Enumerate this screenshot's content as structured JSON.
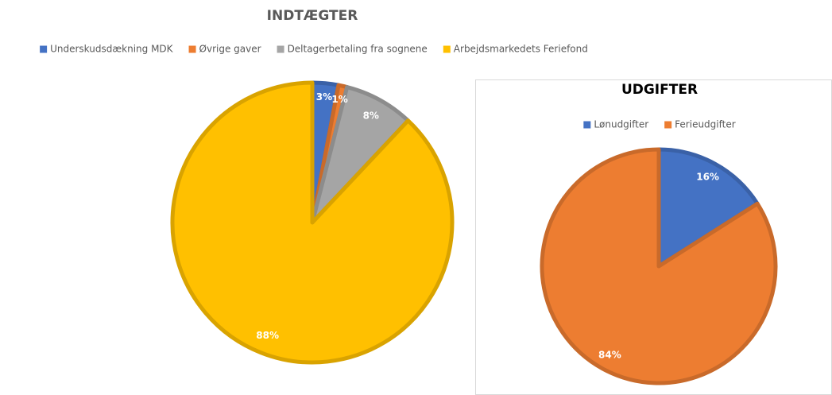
{
  "chart_data": [
    {
      "type": "pie",
      "title": "INDTÆGTER",
      "categories": [
        "Underskudsdækning MDK",
        "Øvrige gaver",
        "Deltagerbetaling fra sognene",
        "Arbejdsmarkedets Feriefond"
      ],
      "values": [
        3,
        1,
        8,
        88
      ],
      "value_labels": [
        "3%",
        "1%",
        "8%",
        "88%"
      ],
      "colors": [
        "#4472c4",
        "#ed7d31",
        "#a5a5a5",
        "#ffc000"
      ],
      "legend": "top"
    },
    {
      "type": "pie",
      "title": "UDGIFTER",
      "categories": [
        "Lønudgifter",
        "Ferieudgifter"
      ],
      "values": [
        16,
        84
      ],
      "value_labels": [
        "16%",
        "84%"
      ],
      "colors": [
        "#4472c4",
        "#ed7d31"
      ],
      "legend": "top"
    }
  ]
}
